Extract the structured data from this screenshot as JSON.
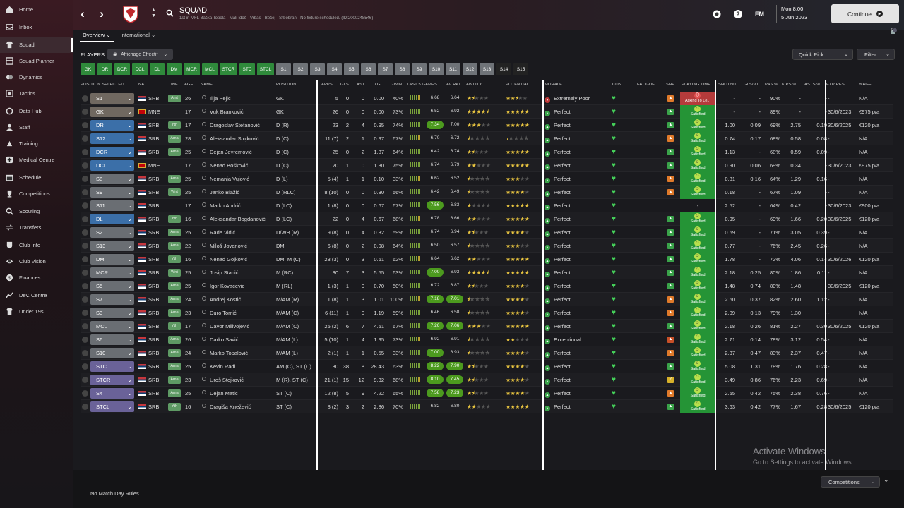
{
  "nav": {
    "items": [
      {
        "label": "Home",
        "icon": "home-icon"
      },
      {
        "label": "Inbox",
        "icon": "inbox-icon"
      },
      {
        "label": "Squad",
        "icon": "shirt-icon",
        "active": true
      },
      {
        "label": "Squad Planner",
        "icon": "planner-icon"
      },
      {
        "label": "Dynamics",
        "icon": "dynamics-icon"
      },
      {
        "label": "Tactics",
        "icon": "tactics-icon"
      },
      {
        "label": "Data Hub",
        "icon": "data-hub-icon"
      },
      {
        "label": "Staff",
        "icon": "staff-icon"
      },
      {
        "label": "Training",
        "icon": "training-icon"
      },
      {
        "label": "Medical Centre",
        "icon": "medical-icon"
      },
      {
        "label": "Schedule",
        "icon": "calendar-icon"
      },
      {
        "label": "Competitions",
        "icon": "trophy-icon"
      },
      {
        "label": "Scouting",
        "icon": "scouting-icon"
      },
      {
        "label": "Transfers",
        "icon": "transfers-icon"
      },
      {
        "label": "Club Info",
        "icon": "club-info-icon"
      },
      {
        "label": "Club Vision",
        "icon": "vision-icon"
      },
      {
        "label": "Finances",
        "icon": "finances-icon"
      },
      {
        "label": "Dev. Centre",
        "icon": "dev-centre-icon"
      },
      {
        "label": "Under 19s",
        "icon": "under19-icon"
      }
    ]
  },
  "header": {
    "title": "SQUAD",
    "subtitle": "1st in MFL Bačka Topola - Mali Iđoš - Vrbas - Bečej - Srbobran - No fixture scheduled. (ID:2000248546)",
    "date_line1": "Mon 8:00",
    "date_line2": "5 Jun 2023",
    "fm_label": "FM",
    "continue_label": "Continue",
    "help_label": "?"
  },
  "tabs": [
    {
      "label": "Overview"
    },
    {
      "label": "International"
    }
  ],
  "notification_count": "6",
  "toolbar": {
    "players_label": "PLAYERS",
    "view_label": "Affichage Effectif",
    "quick_pick_label": "Quick Pick",
    "filter_label": "Filter"
  },
  "chips": [
    {
      "label": "GK",
      "style": "g"
    },
    {
      "label": "DR",
      "style": "g"
    },
    {
      "label": "DCR",
      "style": "g"
    },
    {
      "label": "DCL",
      "style": "g"
    },
    {
      "label": "DL",
      "style": "g"
    },
    {
      "label": "DM",
      "style": "g"
    },
    {
      "label": "MCR",
      "style": "g"
    },
    {
      "label": "MCL",
      "style": "g"
    },
    {
      "label": "STCR",
      "style": "g"
    },
    {
      "label": "STC",
      "style": "g"
    },
    {
      "label": "STCL",
      "style": "g"
    },
    {
      "label": "S1",
      "style": "n"
    },
    {
      "label": "S2",
      "style": "n"
    },
    {
      "label": "S3",
      "style": "n"
    },
    {
      "label": "S4",
      "style": "n"
    },
    {
      "label": "S5",
      "style": "n"
    },
    {
      "label": "S6",
      "style": "n"
    },
    {
      "label": "S7",
      "style": "n"
    },
    {
      "label": "S8",
      "style": "n"
    },
    {
      "label": "S9",
      "style": "n"
    },
    {
      "label": "S10",
      "style": "n"
    },
    {
      "label": "S11",
      "style": "n"
    },
    {
      "label": "S12",
      "style": "n"
    },
    {
      "label": "S13",
      "style": "n"
    },
    {
      "label": "S14",
      "style": "d"
    },
    {
      "label": "S15",
      "style": "d"
    }
  ],
  "columns": {
    "position_selected": "POSITION SELECTED",
    "nat": "NAT",
    "age": "AGE",
    "inf": "INF",
    "name": "NAME",
    "position": "POSITION",
    "apps": "APPS",
    "gls": "GLS",
    "ast": "AST",
    "xg": "XG",
    "gwin": "GWIN",
    "last5": "LAST 5 GAMES",
    "avrat": "AV RAT",
    "ability": "ABILITY",
    "potential": "POTENTIAL",
    "morale": "MORALE",
    "con": "CON",
    "fatigue": "FATIGUE",
    "shp": "SHP",
    "playing_time": "PLAYING TIME",
    "shot90": "SHOT/90",
    "gls90": "GLS/90",
    "pas": "PAS %",
    "kps90": "K PS/90",
    "asts90": "ASTS/90",
    "expires": "EXPIRES",
    "wage": "WAGE"
  },
  "players": [
    {
      "sel": "S1",
      "pg": "gk",
      "nat": "SRB",
      "age": "26",
      "inf": "Amt",
      "name": "Ilija Pejić",
      "position": "GK",
      "apps": "5",
      "gls": "0",
      "ast": "0",
      "xg": "0.00",
      "gwin": "40%",
      "last": "6.68",
      "lhi": false,
      "avr": "6.64",
      "ahi": false,
      "ab": 1.5,
      "pot": 2.5,
      "morale": "Extremely Poor",
      "mneg": true,
      "shp": "o",
      "pt": "Asking To Le...",
      "ask": true,
      "shot": "-",
      "g90": "-",
      "pas": "90%",
      "kps": "-",
      "ast90": "-",
      "exp": "-",
      "wage": "N/A"
    },
    {
      "sel": "GK",
      "pg": "gk",
      "nat": "MNE",
      "age": "17",
      "inf": "",
      "name": "Vuk Branković",
      "position": "GK",
      "apps": "26",
      "gls": "0",
      "ast": "0",
      "xg": "0.00",
      "gwin": "73%",
      "last": "6.52",
      "lhi": false,
      "avr": "6.92",
      "ahi": false,
      "ab": 4.5,
      "pot": 5,
      "morale": "Perfect",
      "mneg": false,
      "shp": "g",
      "pt": "Satisfied",
      "ask": false,
      "shot": "-",
      "g90": "-",
      "pas": "89%",
      "kps": "-",
      "ast90": "-",
      "exp": "30/6/2023",
      "wage": "€975 p/a"
    },
    {
      "sel": "DR",
      "pg": "def",
      "nat": "SRB",
      "age": "17",
      "inf": "Yth",
      "name": "Dragoslav Stefanović",
      "position": "D (R)",
      "apps": "23",
      "gls": "2",
      "ast": "4",
      "xg": "0.95",
      "gwin": "74%",
      "last": "7.34",
      "lhi": true,
      "avr": "7.00",
      "ahi": false,
      "ab": 3,
      "pot": 5,
      "morale": "Perfect",
      "mneg": false,
      "shp": "g",
      "pt": "Satisfied",
      "ask": false,
      "shot": "1.00",
      "g90": "0.09",
      "pas": "69%",
      "kps": "2.75",
      "ast90": "0.19",
      "exp": "30/6/2025",
      "wage": "€120 p/a"
    },
    {
      "sel": "S12",
      "pg": "def",
      "nat": "SRB",
      "age": "28",
      "inf": "Ama",
      "name": "Aleksandar Stojković",
      "position": "D (C)",
      "apps": "11 (7)",
      "gls": "2",
      "ast": "1",
      "xg": "0.97",
      "gwin": "67%",
      "last": "6.70",
      "lhi": false,
      "avr": "6.72",
      "ahi": false,
      "ab": 0.5,
      "pot": 0.5,
      "morale": "Perfect",
      "mneg": false,
      "shp": "o",
      "pt": "Satisfied",
      "ask": false,
      "shot": "0.74",
      "g90": "0.17",
      "pas": "68%",
      "kps": "0.58",
      "ast90": "0.08",
      "exp": "-",
      "wage": "N/A"
    },
    {
      "sel": "DCR",
      "pg": "def",
      "nat": "SRB",
      "age": "25",
      "inf": "Ama",
      "name": "Dejan Jevremović",
      "position": "D (C)",
      "apps": "25",
      "gls": "0",
      "ast": "2",
      "xg": "1.87",
      "gwin": "64%",
      "last": "6.42",
      "lhi": false,
      "avr": "6.74",
      "ahi": false,
      "ab": 1.5,
      "pot": 5,
      "morale": "Perfect",
      "mneg": false,
      "shp": "g",
      "pt": "Satisfied",
      "ask": false,
      "shot": "1.13",
      "g90": "-",
      "pas": "68%",
      "kps": "0.59",
      "ast90": "0.09",
      "exp": "-",
      "wage": "N/A"
    },
    {
      "sel": "DCL",
      "pg": "def",
      "nat": "MNE",
      "age": "17",
      "inf": "",
      "name": "Nenad Bošković",
      "position": "D (C)",
      "apps": "20",
      "gls": "1",
      "ast": "0",
      "xg": "1.30",
      "gwin": "75%",
      "last": "6.74",
      "lhi": false,
      "avr": "6.79",
      "ahi": false,
      "ab": 2,
      "pot": 5,
      "morale": "Perfect",
      "mneg": false,
      "shp": "g",
      "pt": "Satisfied",
      "ask": false,
      "shot": "0.90",
      "g90": "0.06",
      "pas": "69%",
      "kps": "0.34",
      "ast90": "-",
      "exp": "30/6/2023",
      "wage": "€975 p/a"
    },
    {
      "sel": "S8",
      "pg": "mid",
      "nat": "SRB",
      "age": "25",
      "inf": "Ama",
      "name": "Nemanja Vujović",
      "position": "D (L)",
      "apps": "5 (4)",
      "gls": "1",
      "ast": "1",
      "xg": "0.10",
      "gwin": "33%",
      "last": "6.62",
      "lhi": false,
      "avr": "6.52",
      "ahi": false,
      "ab": 0.5,
      "pot": 3,
      "morale": "Perfect",
      "mneg": false,
      "shp": "o",
      "pt": "Satisfied",
      "ask": false,
      "shot": "0.81",
      "g90": "0.16",
      "pas": "64%",
      "kps": "1.29",
      "ast90": "0.16",
      "exp": "-",
      "wage": "N/A"
    },
    {
      "sel": "S9",
      "pg": "mid",
      "nat": "SRB",
      "age": "25",
      "inf": "Wnt",
      "name": "Janko Blažić",
      "position": "D (RLC)",
      "apps": "8 (10)",
      "gls": "0",
      "ast": "0",
      "xg": "0.30",
      "gwin": "56%",
      "last": "6.42",
      "lhi": false,
      "avr": "6.49",
      "ahi": false,
      "ab": 0.5,
      "pot": 4,
      "morale": "Perfect",
      "mneg": false,
      "shp": "o",
      "pt": "Satisfied",
      "ask": false,
      "shot": "0.18",
      "g90": "-",
      "pas": "67%",
      "kps": "1.09",
      "ast90": "-",
      "exp": "-",
      "wage": "N/A"
    },
    {
      "sel": "S11",
      "pg": "mid",
      "nat": "SRB",
      "age": "17",
      "inf": "",
      "name": "Marko Andrić",
      "position": "D (LC)",
      "apps": "1 (8)",
      "gls": "0",
      "ast": "0",
      "xg": "0.67",
      "gwin": "67%",
      "last": "7.56",
      "lhi": true,
      "avr": "6.83",
      "ahi": false,
      "ab": 1,
      "pot": 5,
      "morale": "Perfect",
      "mneg": false,
      "shp": "",
      "pt": "-",
      "ask": false,
      "none": true,
      "shot": "2.52",
      "g90": "-",
      "pas": "64%",
      "kps": "0.42",
      "ast90": "-",
      "exp": "30/6/2023",
      "wage": "€900 p/a"
    },
    {
      "sel": "DL",
      "pg": "def",
      "nat": "SRB",
      "age": "16",
      "inf": "Yth",
      "name": "Aleksandar Bogdanović",
      "position": "D (LC)",
      "apps": "22",
      "gls": "0",
      "ast": "4",
      "xg": "0.67",
      "gwin": "68%",
      "last": "6.78",
      "lhi": false,
      "avr": "6.66",
      "ahi": false,
      "ab": 2,
      "pot": 5,
      "morale": "Perfect",
      "mneg": false,
      "shp": "g",
      "pt": "Satisfied",
      "ask": false,
      "shot": "0.95",
      "g90": "-",
      "pas": "69%",
      "kps": "1.66",
      "ast90": "0.20",
      "exp": "30/6/2025",
      "wage": "€120 p/a"
    },
    {
      "sel": "S2",
      "pg": "mid",
      "nat": "SRB",
      "age": "25",
      "inf": "Ama",
      "name": "Rade Vidić",
      "position": "D/WB (R)",
      "apps": "9 (8)",
      "gls": "0",
      "ast": "4",
      "xg": "0.32",
      "gwin": "59%",
      "last": "6.74",
      "lhi": false,
      "avr": "6.94",
      "ahi": false,
      "ab": 1.5,
      "pot": 4,
      "morale": "Perfect",
      "mneg": false,
      "shp": "g",
      "pt": "Satisfied",
      "ask": false,
      "shot": "0.69",
      "g90": "-",
      "pas": "71%",
      "kps": "3.05",
      "ast90": "0.39",
      "exp": "-",
      "wage": "N/A"
    },
    {
      "sel": "S13",
      "pg": "mid",
      "nat": "SRB",
      "age": "22",
      "inf": "Ama",
      "name": "Miloš Jovanović",
      "position": "DM",
      "apps": "6 (8)",
      "gls": "0",
      "ast": "2",
      "xg": "0.08",
      "gwin": "64%",
      "last": "6.50",
      "lhi": false,
      "avr": "6.57",
      "ahi": false,
      "ab": 0.5,
      "pot": 3,
      "morale": "Perfect",
      "mneg": false,
      "shp": "g",
      "pt": "Satisfied",
      "ask": false,
      "shot": "0.77",
      "g90": "-",
      "pas": "76%",
      "kps": "2.45",
      "ast90": "0.26",
      "exp": "-",
      "wage": "N/A"
    },
    {
      "sel": "DM",
      "pg": "mid",
      "nat": "SRB",
      "age": "16",
      "inf": "Yth",
      "name": "Nenad Gojković",
      "position": "DM, M (C)",
      "apps": "23 (3)",
      "gls": "0",
      "ast": "3",
      "xg": "0.61",
      "gwin": "62%",
      "last": "6.64",
      "lhi": false,
      "avr": "6.62",
      "ahi": false,
      "ab": 2,
      "pot": 5,
      "morale": "Perfect",
      "mneg": false,
      "shp": "g",
      "pt": "Satisfied",
      "ask": false,
      "shot": "1.78",
      "g90": "-",
      "pas": "72%",
      "kps": "4.06",
      "ast90": "0.14",
      "exp": "30/6/2026",
      "wage": "€120 p/a"
    },
    {
      "sel": "MCR",
      "pg": "mid",
      "nat": "SRB",
      "age": "25",
      "inf": "Wnt",
      "name": "Josip Stanić",
      "position": "M (RC)",
      "apps": "30",
      "gls": "7",
      "ast": "3",
      "xg": "5.55",
      "gwin": "63%",
      "last": "7.00",
      "lhi": true,
      "avr": "6.93",
      "ahi": false,
      "ab": 4.5,
      "pot": 5,
      "morale": "Perfect",
      "mneg": false,
      "shp": "g",
      "pt": "Satisfied",
      "ask": false,
      "shot": "2.18",
      "g90": "0.25",
      "pas": "80%",
      "kps": "1.86",
      "ast90": "0.11",
      "exp": "-",
      "wage": "N/A"
    },
    {
      "sel": "S5",
      "pg": "mid",
      "nat": "SRB",
      "age": "25",
      "inf": "Ama",
      "name": "Igor Kovacevic",
      "position": "M (RL)",
      "apps": "1 (3)",
      "gls": "1",
      "ast": "0",
      "xg": "0.70",
      "gwin": "50%",
      "last": "6.72",
      "lhi": false,
      "avr": "6.87",
      "ahi": false,
      "ab": 1.5,
      "pot": 4,
      "morale": "Perfect",
      "mneg": false,
      "shp": "g",
      "pt": "Satisfied",
      "ask": false,
      "shot": "1.48",
      "g90": "0.74",
      "pas": "80%",
      "kps": "1.48",
      "ast90": "-",
      "exp": "30/6/2025",
      "wage": "€120 p/a"
    },
    {
      "sel": "S7",
      "pg": "mid",
      "nat": "SRB",
      "age": "24",
      "inf": "Ama",
      "name": "Andrej Kostić",
      "position": "M/AM (R)",
      "apps": "1 (8)",
      "gls": "1",
      "ast": "3",
      "xg": "1.01",
      "gwin": "100%",
      "last": "7.18",
      "lhi": true,
      "avr": "7.01",
      "ahi": true,
      "ab": 0.5,
      "pot": 4,
      "morale": "Perfect",
      "mneg": false,
      "shp": "o",
      "pt": "Satisfied",
      "ask": false,
      "shot": "2.60",
      "g90": "0.37",
      "pas": "82%",
      "kps": "2.60",
      "ast90": "1.12",
      "exp": "-",
      "wage": "N/A"
    },
    {
      "sel": "S3",
      "pg": "mid",
      "nat": "SRB",
      "age": "23",
      "inf": "Ama",
      "name": "Đuro Tomić",
      "position": "M/AM (C)",
      "apps": "6 (11)",
      "gls": "1",
      "ast": "0",
      "xg": "1.19",
      "gwin": "59%",
      "last": "6.46",
      "lhi": false,
      "avr": "6.58",
      "ahi": false,
      "ab": 0.5,
      "pot": 4,
      "morale": "Perfect",
      "mneg": false,
      "shp": "o",
      "pt": "Satisfied",
      "ask": false,
      "shot": "2.09",
      "g90": "0.13",
      "pas": "79%",
      "kps": "1.30",
      "ast90": "-",
      "exp": "-",
      "wage": "N/A"
    },
    {
      "sel": "MCL",
      "pg": "mid",
      "nat": "SRB",
      "age": "17",
      "inf": "Yth",
      "name": "Davor Milivojević",
      "position": "M/AM (C)",
      "apps": "25 (2)",
      "gls": "6",
      "ast": "7",
      "xg": "4.51",
      "gwin": "67%",
      "last": "7.26",
      "lhi": true,
      "avr": "7.06",
      "ahi": true,
      "ab": 3,
      "pot": 5,
      "morale": "Perfect",
      "mneg": false,
      "shp": "g",
      "pt": "Satisfied",
      "ask": false,
      "shot": "2.18",
      "g90": "0.26",
      "pas": "81%",
      "kps": "2.27",
      "ast90": "0.30",
      "exp": "30/6/2025",
      "wage": "€120 p/a"
    },
    {
      "sel": "S6",
      "pg": "mid",
      "nat": "SRB",
      "age": "26",
      "inf": "Ama",
      "name": "Darko Savić",
      "position": "M/AM (L)",
      "apps": "5 (10)",
      "gls": "1",
      "ast": "4",
      "xg": "1.95",
      "gwin": "73%",
      "last": "6.92",
      "lhi": false,
      "avr": "6.91",
      "ahi": false,
      "ab": 0.5,
      "pot": 2,
      "morale": "Exceptional",
      "mneg": false,
      "shp": "r",
      "pt": "Satisfied",
      "ask": false,
      "shot": "2.71",
      "g90": "0.14",
      "pas": "78%",
      "kps": "3.12",
      "ast90": "0.54",
      "exp": "-",
      "wage": "N/A"
    },
    {
      "sel": "S10",
      "pg": "mid",
      "nat": "SRB",
      "age": "24",
      "inf": "Ama",
      "name": "Marko Topalović",
      "position": "M/AM (L)",
      "apps": "2 (1)",
      "gls": "1",
      "ast": "1",
      "xg": "0.55",
      "gwin": "33%",
      "last": "7.00",
      "lhi": true,
      "avr": "6.93",
      "ahi": false,
      "ab": 0.5,
      "pot": 4,
      "morale": "Perfect",
      "mneg": false,
      "shp": "o",
      "pt": "Satisfied",
      "ask": false,
      "shot": "2.37",
      "g90": "0.47",
      "pas": "83%",
      "kps": "2.37",
      "ast90": "0.47",
      "exp": "-",
      "wage": "N/A"
    },
    {
      "sel": "STC",
      "pg": "att",
      "nat": "SRB",
      "age": "25",
      "inf": "Ama",
      "name": "Kevin Radl",
      "position": "AM (C), ST (C)",
      "apps": "30",
      "gls": "38",
      "ast": "8",
      "xg": "28.43",
      "gwin": "63%",
      "last": "8.22",
      "lhi": true,
      "avr": "7.90",
      "ahi": true,
      "ab": 1.5,
      "pot": 4,
      "morale": "Perfect",
      "mneg": false,
      "shp": "g",
      "pt": "Satisfied",
      "ask": false,
      "shot": "5.08",
      "g90": "1.31",
      "pas": "78%",
      "kps": "1.76",
      "ast90": "0.28",
      "exp": "-",
      "wage": "N/A"
    },
    {
      "sel": "STCR",
      "pg": "att",
      "nat": "SRB",
      "age": "23",
      "inf": "Ama",
      "name": "Uroš Stojković",
      "position": "M (R), ST (C)",
      "apps": "21 (1)",
      "gls": "15",
      "ast": "12",
      "xg": "9.32",
      "gwin": "68%",
      "last": "8.10",
      "lhi": true,
      "avr": "7.45",
      "ahi": true,
      "ab": 1.5,
      "pot": 4,
      "morale": "Perfect",
      "mneg": false,
      "shp": "y",
      "pt": "Satisfied",
      "ask": false,
      "shot": "3.49",
      "g90": "0.86",
      "pas": "76%",
      "kps": "2.23",
      "ast90": "0.69",
      "exp": "-",
      "wage": "N/A"
    },
    {
      "sel": "S4",
      "pg": "att",
      "nat": "SRB",
      "age": "25",
      "inf": "Ama",
      "name": "Dejan Matić",
      "position": "ST (C)",
      "apps": "12 (8)",
      "gls": "5",
      "ast": "9",
      "xg": "4.22",
      "gwin": "65%",
      "last": "7.58",
      "lhi": true,
      "avr": "7.23",
      "ahi": true,
      "ab": 1.5,
      "pot": 4,
      "morale": "Perfect",
      "mneg": false,
      "shp": "o",
      "pt": "Satisfied",
      "ask": false,
      "shot": "2.55",
      "g90": "0.42",
      "pas": "75%",
      "kps": "2.38",
      "ast90": "0.76",
      "exp": "-",
      "wage": "N/A"
    },
    {
      "sel": "STCL",
      "pg": "att",
      "nat": "SRB",
      "age": "16",
      "inf": "Yth",
      "name": "Dragiša Knežević",
      "position": "ST (C)",
      "apps": "8 (2)",
      "gls": "3",
      "ast": "2",
      "xg": "2.86",
      "gwin": "70%",
      "last": "6.82",
      "lhi": false,
      "avr": "6.80",
      "ahi": false,
      "ab": 2,
      "pot": 5,
      "morale": "Perfect",
      "mneg": false,
      "shp": "g",
      "pt": "Satisfied",
      "ask": false,
      "shot": "3.63",
      "g90": "0.42",
      "pas": "77%",
      "kps": "1.67",
      "ast90": "0.28",
      "exp": "30/6/2025",
      "wage": "€120 p/a"
    }
  ],
  "footer": {
    "match_rules": "No Match Day Rules",
    "competitions_label": "Competitions"
  },
  "watermark": {
    "line1": "Activate Windows",
    "line2": "Go to Settings to activate Windows."
  }
}
